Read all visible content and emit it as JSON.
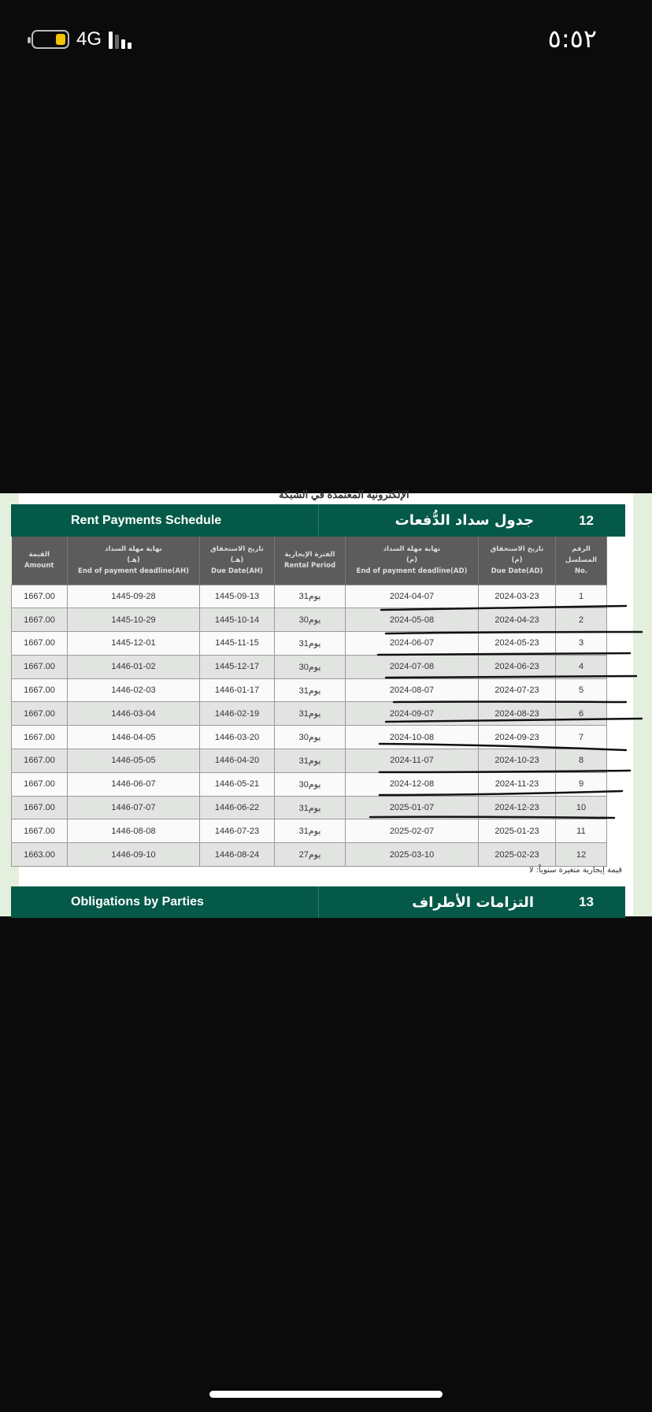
{
  "status_bar": {
    "network": "4G",
    "time": "٥:٥٢",
    "battery_color": "#f5c400"
  },
  "document": {
    "cut_text": "الإلكترونية المعتمدة في الشبكة",
    "section12": {
      "number": "12",
      "title_en": "Rent Payments Schedule",
      "title_ar": "جدول سداد الدُّفعات"
    },
    "columns": [
      {
        "ar": "القيمة",
        "en": "Amount"
      },
      {
        "ar": "نهاية مهلة السداد",
        "sub": "(هـ)",
        "en": "End of payment deadline(AH)"
      },
      {
        "ar": "تاريخ الاستحقاق",
        "sub": "(هـ)",
        "en": "Due Date(AH)"
      },
      {
        "ar": "الفترة الإيجارية",
        "en": "Rental Period"
      },
      {
        "ar": "نهاية مهلة السداد",
        "sub": "(م)",
        "en": "End of payment deadline(AD)"
      },
      {
        "ar": "تاريخ الاستحقاق",
        "sub": "(م)",
        "en": "Due Date(AD)"
      },
      {
        "ar": "الرقم المسلسل",
        "en": "No."
      }
    ],
    "rows": [
      [
        "1667.00",
        "1445-09-28",
        "1445-09-13",
        "31يوم",
        "2024-04-07",
        "2024-03-23",
        "1"
      ],
      [
        "1667.00",
        "1445-10-29",
        "1445-10-14",
        "30يوم",
        "2024-05-08",
        "2024-04-23",
        "2"
      ],
      [
        "1667.00",
        "1445-12-01",
        "1445-11-15",
        "31يوم",
        "2024-06-07",
        "2024-05-23",
        "3"
      ],
      [
        "1667.00",
        "1446-01-02",
        "1445-12-17",
        "30يوم",
        "2024-07-08",
        "2024-06-23",
        "4"
      ],
      [
        "1667.00",
        "1446-02-03",
        "1446-01-17",
        "31يوم",
        "2024-08-07",
        "2024-07-23",
        "5"
      ],
      [
        "1667.00",
        "1446-03-04",
        "1446-02-19",
        "31يوم",
        "2024-09-07",
        "2024-08-23",
        "6"
      ],
      [
        "1667.00",
        "1446-04-05",
        "1446-03-20",
        "30يوم",
        "2024-10-08",
        "2024-09-23",
        "7"
      ],
      [
        "1667.00",
        "1446-05-05",
        "1446-04-20",
        "31يوم",
        "2024-11-07",
        "2024-10-23",
        "8"
      ],
      [
        "1667.00",
        "1446-06-07",
        "1446-05-21",
        "30يوم",
        "2024-12-08",
        "2024-11-23",
        "9"
      ],
      [
        "1667.00",
        "1446-07-07",
        "1446-06-22",
        "31يوم",
        "2025-01-07",
        "2024-12-23",
        "10"
      ],
      [
        "1667.00",
        "1446-08-08",
        "1446-07-23",
        "31يوم",
        "2025-02-07",
        "2025-01-23",
        "11"
      ],
      [
        "1663.00",
        "1446-09-10",
        "1446-08-24",
        "27يوم",
        "2025-03-10",
        "2025-02-23",
        "12"
      ]
    ],
    "note": "قيمة إيجارية متغيرة سنوياً: لا",
    "section13": {
      "number": "13",
      "title_en": "Obligations by Parties",
      "title_ar": "التزامات الأطراف"
    },
    "brand_color": "#045948"
  }
}
